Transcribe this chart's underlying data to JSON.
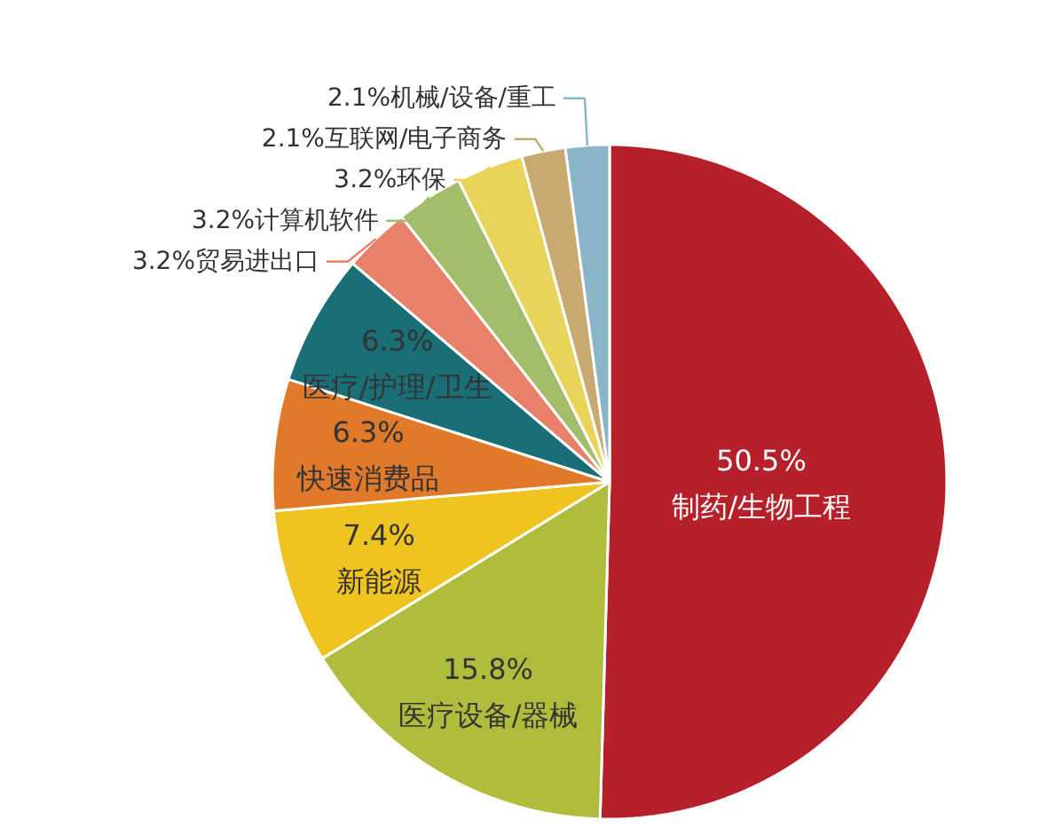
{
  "chart_data": {
    "type": "pie",
    "categories": [
      "制药/生物工程",
      "医疗设备/器械",
      "新能源",
      "快速消费品",
      "医疗/护理/卫生",
      "贸易进出口",
      "计算机软件",
      "环保",
      "互联网/电子商务",
      "机械/设备/重工"
    ],
    "values": [
      50.5,
      15.8,
      7.4,
      6.3,
      6.3,
      3.2,
      3.2,
      3.2,
      2.1,
      2.1
    ],
    "value_labels": [
      "50.5%",
      "15.8%",
      "7.4%",
      "6.3%",
      "6.3%",
      "3.2%",
      "3.2%",
      "3.2%",
      "2.1%",
      "2.1%"
    ],
    "colors": [
      "#b5202a",
      "#b0bd3c",
      "#f0c420",
      "#e07a2a",
      "#1a6e75",
      "#e8806a",
      "#a4bd6a",
      "#e8d45a",
      "#c8aa70",
      "#8ab4c8"
    ]
  }
}
